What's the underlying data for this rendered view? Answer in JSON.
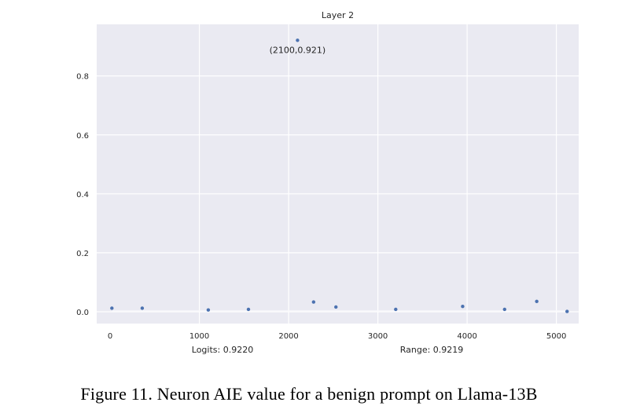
{
  "chart_data": {
    "type": "scatter",
    "title": "Layer 2",
    "xlabel": "",
    "ylabel": "",
    "xlim": [
      -150,
      5250
    ],
    "ylim": [
      -0.04,
      0.975
    ],
    "x_ticks": [
      0,
      1000,
      2000,
      3000,
      4000,
      5000
    ],
    "y_ticks": [
      0.0,
      0.2,
      0.4,
      0.6,
      0.8
    ],
    "x_tick_labels": [
      "0",
      "1000",
      "2000",
      "3000",
      "4000",
      "5000"
    ],
    "y_tick_labels": [
      "0.0",
      "0.2",
      "0.4",
      "0.6",
      "0.8"
    ],
    "grid": true,
    "marker_color": "#4c72b0",
    "background_color": "#eaeaf2",
    "points": [
      {
        "x": 20,
        "y": 0.012
      },
      {
        "x": 360,
        "y": 0.012
      },
      {
        "x": 1100,
        "y": 0.006
      },
      {
        "x": 1550,
        "y": 0.008
      },
      {
        "x": 2100,
        "y": 0.921
      },
      {
        "x": 2280,
        "y": 0.033
      },
      {
        "x": 2530,
        "y": 0.016
      },
      {
        "x": 3200,
        "y": 0.008
      },
      {
        "x": 3950,
        "y": 0.018
      },
      {
        "x": 4420,
        "y": 0.008
      },
      {
        "x": 4780,
        "y": 0.035
      },
      {
        "x": 5120,
        "y": 0.001
      }
    ],
    "annotation": {
      "text": "(2100,0.921)",
      "x": 2100,
      "y": 0.921
    }
  },
  "footer": {
    "logits": "Logits: 0.9220",
    "range": "Range: 0.9219"
  },
  "caption": "Figure 11. Neuron AIE value for a benign prompt on Llama-13B"
}
